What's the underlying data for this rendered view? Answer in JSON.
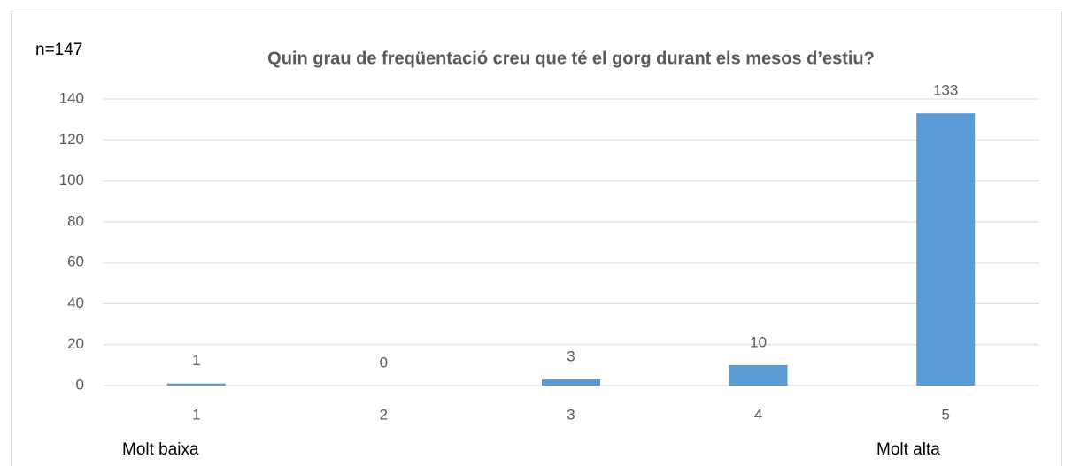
{
  "chart_data": {
    "type": "bar",
    "title": "Quin grau de freqüentació creu que té el gorg durant els mesos d’estiu?",
    "annotations": [
      "n=147",
      "Molt baixa",
      "Molt alta"
    ],
    "categories": [
      "1",
      "2",
      "3",
      "4",
      "5"
    ],
    "values": [
      1,
      0,
      3,
      10,
      133
    ],
    "color": "#5b9bd5",
    "ylim": [
      0,
      140
    ],
    "yticks": [
      0,
      20,
      40,
      60,
      80,
      100,
      120,
      140
    ],
    "grid": true
  }
}
